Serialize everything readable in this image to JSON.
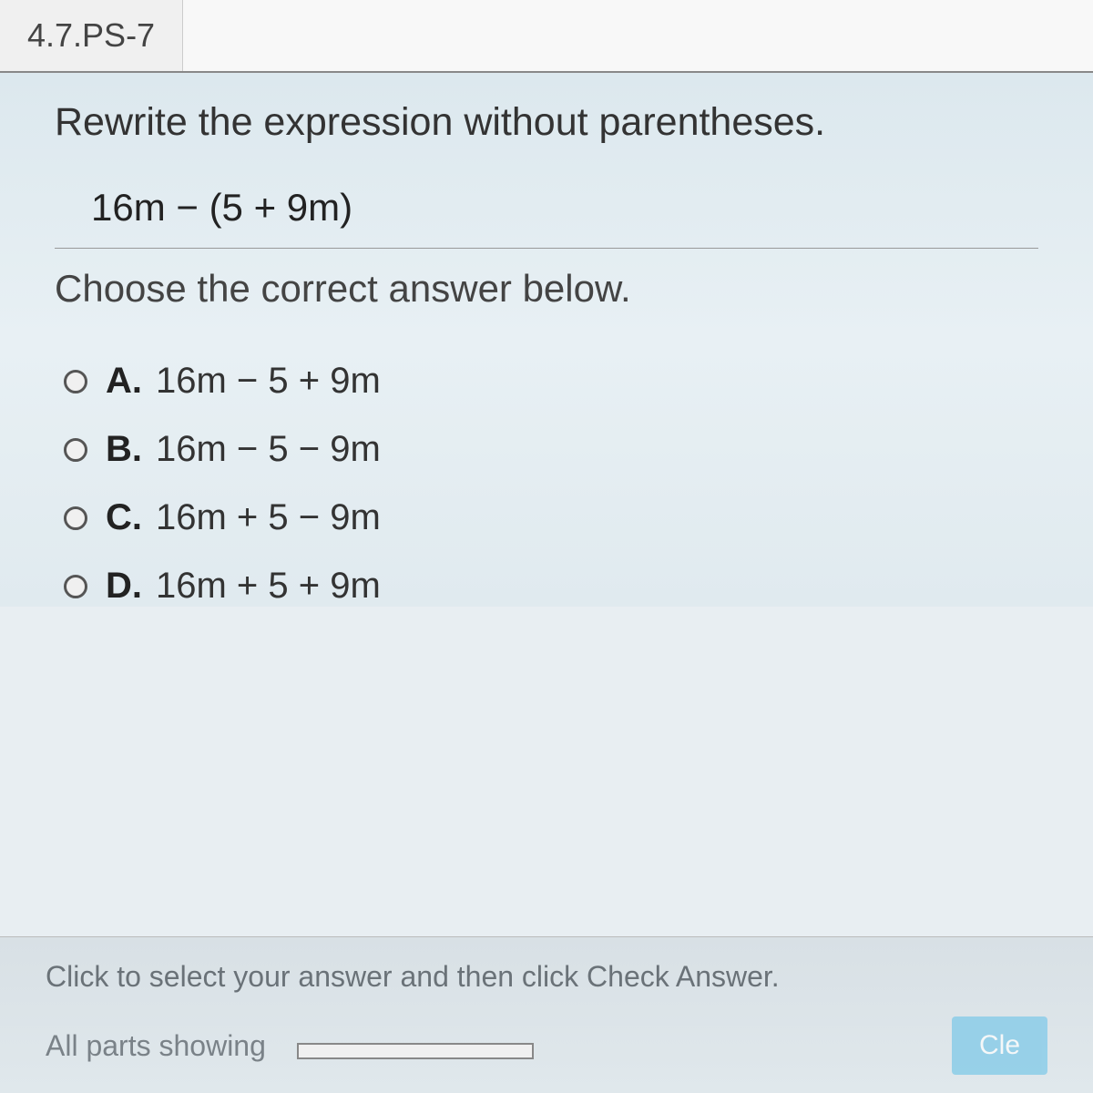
{
  "tab": {
    "label": "4.7.PS-7"
  },
  "question": {
    "prompt": "Rewrite the expression without parentheses.",
    "expression": "16m − (5 + 9m)",
    "choose_prompt": "Choose the correct answer below."
  },
  "options": [
    {
      "label": "A.",
      "text": "16m − 5 + 9m"
    },
    {
      "label": "B.",
      "text": "16m − 5 − 9m"
    },
    {
      "label": "C.",
      "text": "16m + 5 − 9m"
    },
    {
      "label": "D.",
      "text": "16m + 5 + 9m"
    }
  ],
  "footer": {
    "instruction": "Click to select your answer and then click Check Answer.",
    "parts_text": "All parts showing",
    "button_label": "Cle"
  },
  "colors": {
    "text_primary": "#333333",
    "text_muted": "#7a8288",
    "button_bg": "#7ac8e8",
    "radio_border": "#555555"
  }
}
